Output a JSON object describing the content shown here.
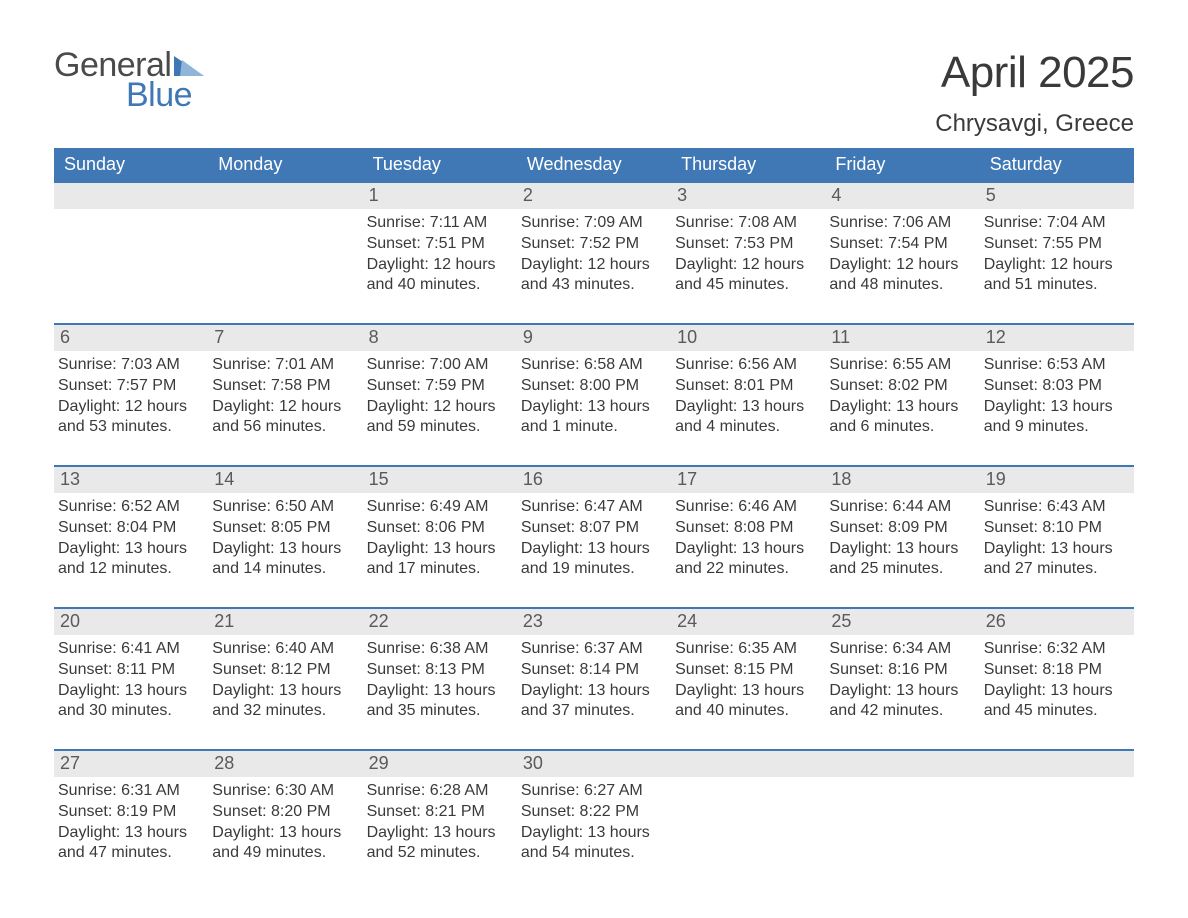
{
  "brand": {
    "word1": "General",
    "word2": "Blue"
  },
  "colors": {
    "brand_blue": "#3f78b5",
    "text": "#3a3a3a",
    "daynum_bg": "#e9e9e9",
    "background": "#ffffff"
  },
  "typography": {
    "title_fontsize": 44,
    "location_fontsize": 24,
    "dow_fontsize": 18,
    "body_fontsize": 16,
    "font_family": "Arial"
  },
  "title": "April 2025",
  "location": "Chrysavgi, Greece",
  "calendar": {
    "type": "table",
    "columns": [
      "Sunday",
      "Monday",
      "Tuesday",
      "Wednesday",
      "Thursday",
      "Friday",
      "Saturday"
    ],
    "row_border_color": "#3f78b5",
    "header_bg": "#3f78b5",
    "header_text_color": "#ffffff",
    "weeks": [
      [
        {
          "blank": true
        },
        {
          "blank": true
        },
        {
          "day": 1,
          "sunrise": "7:11 AM",
          "sunset": "7:51 PM",
          "daylight": "12 hours and 40 minutes."
        },
        {
          "day": 2,
          "sunrise": "7:09 AM",
          "sunset": "7:52 PM",
          "daylight": "12 hours and 43 minutes."
        },
        {
          "day": 3,
          "sunrise": "7:08 AM",
          "sunset": "7:53 PM",
          "daylight": "12 hours and 45 minutes."
        },
        {
          "day": 4,
          "sunrise": "7:06 AM",
          "sunset": "7:54 PM",
          "daylight": "12 hours and 48 minutes."
        },
        {
          "day": 5,
          "sunrise": "7:04 AM",
          "sunset": "7:55 PM",
          "daylight": "12 hours and 51 minutes."
        }
      ],
      [
        {
          "day": 6,
          "sunrise": "7:03 AM",
          "sunset": "7:57 PM",
          "daylight": "12 hours and 53 minutes."
        },
        {
          "day": 7,
          "sunrise": "7:01 AM",
          "sunset": "7:58 PM",
          "daylight": "12 hours and 56 minutes."
        },
        {
          "day": 8,
          "sunrise": "7:00 AM",
          "sunset": "7:59 PM",
          "daylight": "12 hours and 59 minutes."
        },
        {
          "day": 9,
          "sunrise": "6:58 AM",
          "sunset": "8:00 PM",
          "daylight": "13 hours and 1 minute."
        },
        {
          "day": 10,
          "sunrise": "6:56 AM",
          "sunset": "8:01 PM",
          "daylight": "13 hours and 4 minutes."
        },
        {
          "day": 11,
          "sunrise": "6:55 AM",
          "sunset": "8:02 PM",
          "daylight": "13 hours and 6 minutes."
        },
        {
          "day": 12,
          "sunrise": "6:53 AM",
          "sunset": "8:03 PM",
          "daylight": "13 hours and 9 minutes."
        }
      ],
      [
        {
          "day": 13,
          "sunrise": "6:52 AM",
          "sunset": "8:04 PM",
          "daylight": "13 hours and 12 minutes."
        },
        {
          "day": 14,
          "sunrise": "6:50 AM",
          "sunset": "8:05 PM",
          "daylight": "13 hours and 14 minutes."
        },
        {
          "day": 15,
          "sunrise": "6:49 AM",
          "sunset": "8:06 PM",
          "daylight": "13 hours and 17 minutes."
        },
        {
          "day": 16,
          "sunrise": "6:47 AM",
          "sunset": "8:07 PM",
          "daylight": "13 hours and 19 minutes."
        },
        {
          "day": 17,
          "sunrise": "6:46 AM",
          "sunset": "8:08 PM",
          "daylight": "13 hours and 22 minutes."
        },
        {
          "day": 18,
          "sunrise": "6:44 AM",
          "sunset": "8:09 PM",
          "daylight": "13 hours and 25 minutes."
        },
        {
          "day": 19,
          "sunrise": "6:43 AM",
          "sunset": "8:10 PM",
          "daylight": "13 hours and 27 minutes."
        }
      ],
      [
        {
          "day": 20,
          "sunrise": "6:41 AM",
          "sunset": "8:11 PM",
          "daylight": "13 hours and 30 minutes."
        },
        {
          "day": 21,
          "sunrise": "6:40 AM",
          "sunset": "8:12 PM",
          "daylight": "13 hours and 32 minutes."
        },
        {
          "day": 22,
          "sunrise": "6:38 AM",
          "sunset": "8:13 PM",
          "daylight": "13 hours and 35 minutes."
        },
        {
          "day": 23,
          "sunrise": "6:37 AM",
          "sunset": "8:14 PM",
          "daylight": "13 hours and 37 minutes."
        },
        {
          "day": 24,
          "sunrise": "6:35 AM",
          "sunset": "8:15 PM",
          "daylight": "13 hours and 40 minutes."
        },
        {
          "day": 25,
          "sunrise": "6:34 AM",
          "sunset": "8:16 PM",
          "daylight": "13 hours and 42 minutes."
        },
        {
          "day": 26,
          "sunrise": "6:32 AM",
          "sunset": "8:18 PM",
          "daylight": "13 hours and 45 minutes."
        }
      ],
      [
        {
          "day": 27,
          "sunrise": "6:31 AM",
          "sunset": "8:19 PM",
          "daylight": "13 hours and 47 minutes."
        },
        {
          "day": 28,
          "sunrise": "6:30 AM",
          "sunset": "8:20 PM",
          "daylight": "13 hours and 49 minutes."
        },
        {
          "day": 29,
          "sunrise": "6:28 AM",
          "sunset": "8:21 PM",
          "daylight": "13 hours and 52 minutes."
        },
        {
          "day": 30,
          "sunrise": "6:27 AM",
          "sunset": "8:22 PM",
          "daylight": "13 hours and 54 minutes."
        },
        {
          "blank": true
        },
        {
          "blank": true
        },
        {
          "blank": true
        }
      ]
    ],
    "labels": {
      "sunrise": "Sunrise: ",
      "sunset": "Sunset: ",
      "daylight": "Daylight: "
    }
  }
}
